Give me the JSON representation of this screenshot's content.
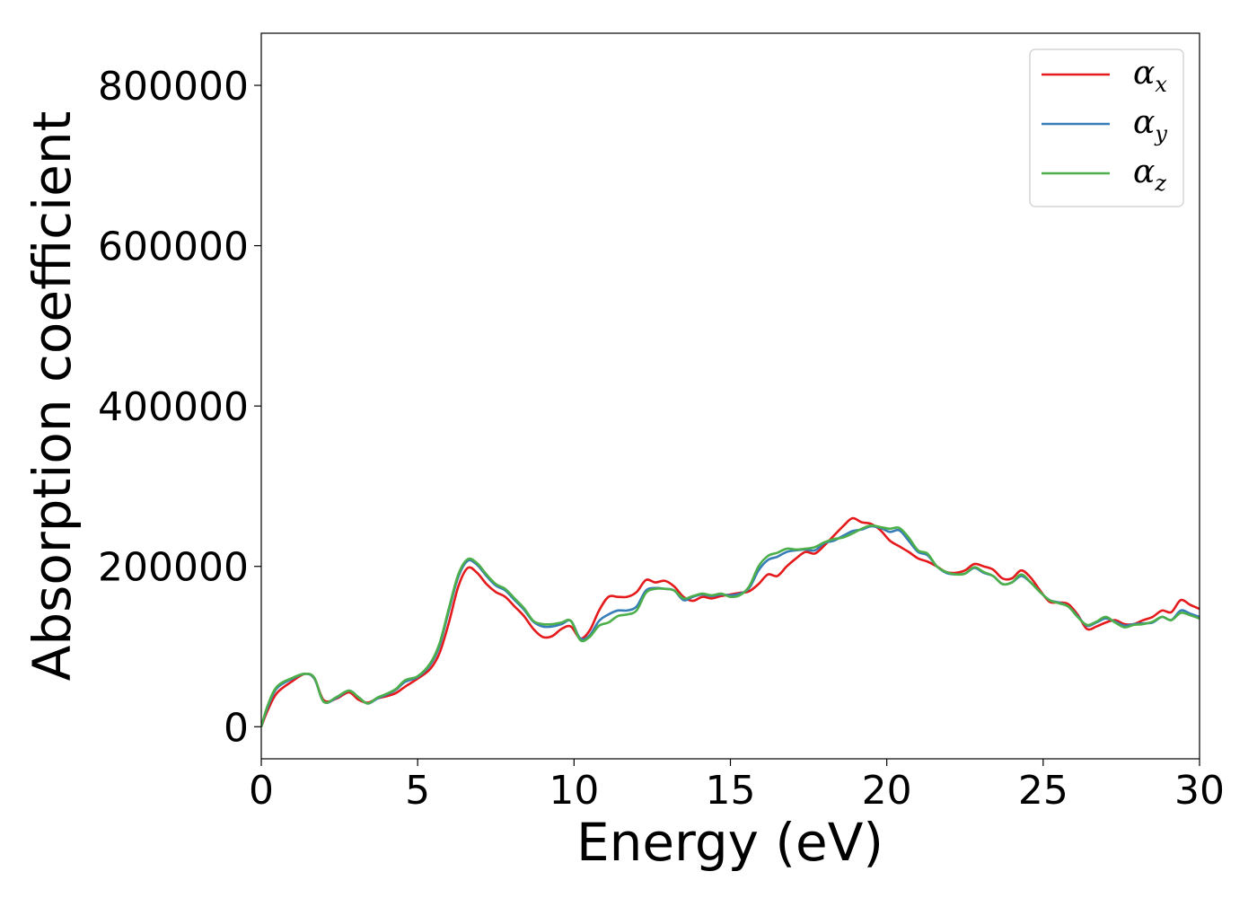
{
  "chart_data": {
    "type": "line",
    "title": "",
    "xlabel": "Energy (eV)",
    "ylabel": "Absorption coefficient",
    "xlim": [
      0,
      30
    ],
    "ylim": [
      -40000,
      865000
    ],
    "xticks": [
      0,
      5,
      10,
      15,
      20,
      25,
      30
    ],
    "xtick_labels": [
      "0",
      "5",
      "10",
      "15",
      "20",
      "25",
      "30"
    ],
    "yticks": [
      0,
      200000,
      400000,
      600000,
      800000
    ],
    "ytick_labels": [
      "0",
      "200000",
      "400000",
      "600000",
      "800000"
    ],
    "grid": false,
    "legend_position": "top-right",
    "x": [
      0,
      0.2,
      0.5,
      1.0,
      1.4,
      1.7,
      2.0,
      2.4,
      2.8,
      3.1,
      3.4,
      3.7,
      4.0,
      4.3,
      4.6,
      5.0,
      5.4,
      5.7,
      6.0,
      6.3,
      6.6,
      6.9,
      7.2,
      7.5,
      7.8,
      8.1,
      8.4,
      8.7,
      9.0,
      9.3,
      9.6,
      9.9,
      10.2,
      10.5,
      10.8,
      11.1,
      11.4,
      11.7,
      12.0,
      12.3,
      12.6,
      12.9,
      13.2,
      13.5,
      13.8,
      14.1,
      14.4,
      14.7,
      15.0,
      15.3,
      15.6,
      15.9,
      16.2,
      16.5,
      16.8,
      17.1,
      17.4,
      17.7,
      18.0,
      18.3,
      18.6,
      18.9,
      19.2,
      19.5,
      19.8,
      20.1,
      20.4,
      20.7,
      21.0,
      21.3,
      21.6,
      21.9,
      22.2,
      22.5,
      22.8,
      23.1,
      23.4,
      23.7,
      24.0,
      24.3,
      24.6,
      24.9,
      25.2,
      25.5,
      25.8,
      26.1,
      26.4,
      26.7,
      27.0,
      27.3,
      27.6,
      27.9,
      28.2,
      28.5,
      28.8,
      29.1,
      29.4,
      29.7,
      30.0
    ],
    "series": [
      {
        "name": "α",
        "subscript": "x",
        "color": "#e41a1c",
        "values": [
          0,
          20000,
          42000,
          57000,
          66000,
          60000,
          33000,
          35000,
          43000,
          34000,
          30000,
          35000,
          38000,
          42000,
          50000,
          60000,
          72000,
          92000,
          130000,
          175000,
          198000,
          192000,
          178000,
          168000,
          162000,
          150000,
          138000,
          122000,
          112000,
          113000,
          122000,
          125000,
          110000,
          120000,
          145000,
          162000,
          162000,
          162000,
          168000,
          183000,
          180000,
          182000,
          175000,
          162000,
          157000,
          162000,
          160000,
          163000,
          165000,
          167000,
          169000,
          178000,
          190000,
          188000,
          200000,
          210000,
          218000,
          216000,
          226000,
          238000,
          250000,
          260000,
          255000,
          253000,
          245000,
          232000,
          225000,
          218000,
          210000,
          206000,
          200000,
          193000,
          192000,
          195000,
          203000,
          200000,
          196000,
          185000,
          185000,
          195000,
          186000,
          170000,
          156000,
          155000,
          153000,
          140000,
          122000,
          125000,
          130000,
          133000,
          128000,
          128000,
          133000,
          137000,
          145000,
          143000,
          158000,
          152000,
          147000
        ]
      },
      {
        "name": "α",
        "subscript": "y",
        "color": "#377eb8",
        "values": [
          0,
          24000,
          48000,
          60000,
          66000,
          60000,
          31000,
          36000,
          45000,
          37000,
          29000,
          35000,
          40000,
          46000,
          56000,
          62000,
          77000,
          101000,
          145000,
          187000,
          207000,
          202000,
          188000,
          176000,
          170000,
          158000,
          146000,
          131000,
          125000,
          125000,
          128000,
          132000,
          110000,
          114000,
          132000,
          140000,
          145000,
          145000,
          150000,
          170000,
          173000,
          172000,
          170000,
          158000,
          162000,
          165000,
          163000,
          165000,
          164000,
          166000,
          173000,
          195000,
          208000,
          212000,
          218000,
          220000,
          221000,
          220000,
          229000,
          232000,
          238000,
          244000,
          246000,
          250000,
          248000,
          243000,
          245000,
          232000,
          218000,
          214000,
          200000,
          192000,
          190000,
          191000,
          198000,
          192000,
          188000,
          178000,
          180000,
          188000,
          180000,
          168000,
          158000,
          155000,
          150000,
          138000,
          126000,
          130000,
          135000,
          131000,
          126000,
          128000,
          129000,
          130000,
          137000,
          133000,
          145000,
          141000,
          137000
        ]
      },
      {
        "name": "α",
        "subscript": "z",
        "color": "#4daf4a",
        "values": [
          0,
          26000,
          50000,
          61000,
          66000,
          61000,
          31000,
          37000,
          45000,
          37000,
          29000,
          36000,
          41000,
          47000,
          58000,
          63000,
          79000,
          104000,
          148000,
          190000,
          209000,
          204000,
          190000,
          178000,
          172000,
          160000,
          148000,
          132000,
          128000,
          128000,
          130000,
          132000,
          108000,
          112000,
          126000,
          130000,
          138000,
          140000,
          145000,
          167000,
          172000,
          172000,
          170000,
          160000,
          163000,
          166000,
          164000,
          166000,
          162000,
          164000,
          175000,
          200000,
          213000,
          217000,
          222000,
          221000,
          222000,
          224000,
          230000,
          234000,
          236000,
          241000,
          247000,
          251000,
          249000,
          247000,
          248000,
          236000,
          220000,
          216000,
          200000,
          193000,
          190000,
          191000,
          199000,
          193000,
          188000,
          178000,
          180000,
          190000,
          180000,
          168000,
          158000,
          154000,
          150000,
          137000,
          127000,
          131000,
          137000,
          130000,
          124000,
          127000,
          128000,
          131000,
          137000,
          133000,
          142000,
          139000,
          135000
        ]
      }
    ]
  }
}
